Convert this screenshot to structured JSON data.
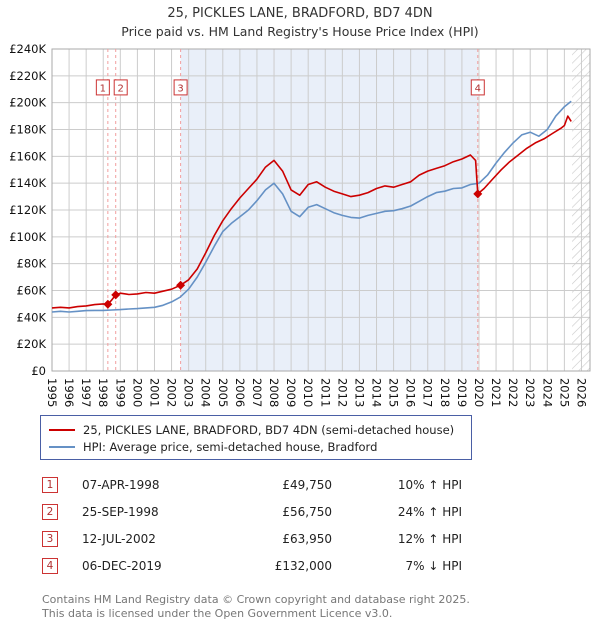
{
  "title": "25, PICKLES LANE, BRADFORD, BD7 4DN",
  "subtitle": "Price paid vs. HM Land Registry's House Price Index (HPI)",
  "legend": {
    "series1": "25, PICKLES LANE, BRADFORD, BD7 4DN (semi-detached house)",
    "series2": "HPI: Average price, semi-detached house, Bradford"
  },
  "transactions": [
    {
      "n": "1",
      "date": "07-APR-1998",
      "price": "£49,750",
      "hpi": "10% ↑ HPI"
    },
    {
      "n": "2",
      "date": "25-SEP-1998",
      "price": "£56,750",
      "hpi": "24% ↑ HPI"
    },
    {
      "n": "3",
      "date": "12-JUL-2002",
      "price": "£63,950",
      "hpi": "12% ↑ HPI"
    },
    {
      "n": "4",
      "date": "06-DEC-2019",
      "price": "£132,000",
      "hpi": "7% ↓ HPI"
    }
  ],
  "footer": {
    "line1": "Contains HM Land Registry data © Crown copyright and database right 2025.",
    "line2": "This data is licensed under the Open Government Licence v3.0."
  },
  "colors": {
    "price_paid": "#cc0000",
    "hpi": "#6591c5",
    "shade": "#e9eff9",
    "sale_line": "#f29e9e",
    "grid": "#cccccc",
    "frame": "#aaaaaa",
    "badge": "#cc3333"
  },
  "chart_data": {
    "type": "line",
    "title": "25, PICKLES LANE, BRADFORD, BD7 4DN",
    "subtitle": "Price paid vs. HM Land Registry's House Price Index (HPI)",
    "x_range": [
      1995,
      2026.5
    ],
    "y_range": [
      0,
      240000
    ],
    "y_tick_step": 20000,
    "y_tick_labels": [
      "£0",
      "£20K",
      "£40K",
      "£60K",
      "£80K",
      "£100K",
      "£120K",
      "£140K",
      "£160K",
      "£180K",
      "£200K",
      "£220K",
      "£240K"
    ],
    "x_ticks": [
      1995,
      1996,
      1997,
      1998,
      1999,
      2000,
      2001,
      2002,
      2003,
      2004,
      2005,
      2006,
      2007,
      2008,
      2009,
      2010,
      2011,
      2012,
      2013,
      2014,
      2015,
      2016,
      2017,
      2018,
      2019,
      2020,
      2021,
      2022,
      2023,
      2024,
      2025,
      2026
    ],
    "shaded_region": [
      2002.53,
      2019.93
    ],
    "hatch_region": [
      2025.45,
      2026.5
    ],
    "marker_label_y": 211000,
    "sales": [
      {
        "n": "1",
        "x": 1998.27,
        "y": 49750,
        "box_dx": -5
      },
      {
        "n": "2",
        "x": 1998.73,
        "y": 56750,
        "box_dx": 5
      },
      {
        "n": "3",
        "x": 2002.53,
        "y": 63950,
        "box_dx": 0
      },
      {
        "n": "4",
        "x": 2019.93,
        "y": 132000,
        "box_dx": 0
      }
    ],
    "series": [
      {
        "name": "25, PICKLES LANE, BRADFORD, BD7 4DN (semi-detached house)",
        "color": "#cc0000",
        "points": [
          [
            1995.0,
            47000
          ],
          [
            1995.5,
            47500
          ],
          [
            1996.0,
            47000
          ],
          [
            1996.5,
            48000
          ],
          [
            1997.0,
            48500
          ],
          [
            1997.5,
            49500
          ],
          [
            1998.0,
            50000
          ],
          [
            1998.27,
            49750
          ],
          [
            1998.5,
            53000
          ],
          [
            1998.73,
            56750
          ],
          [
            1999.0,
            58000
          ],
          [
            1999.5,
            57000
          ],
          [
            2000.0,
            57500
          ],
          [
            2000.5,
            58500
          ],
          [
            2001.0,
            58000
          ],
          [
            2001.5,
            59500
          ],
          [
            2002.0,
            61000
          ],
          [
            2002.53,
            63950
          ],
          [
            2003.0,
            68000
          ],
          [
            2003.5,
            76000
          ],
          [
            2004.0,
            88000
          ],
          [
            2004.5,
            101000
          ],
          [
            2005.0,
            112000
          ],
          [
            2005.5,
            121000
          ],
          [
            2006.0,
            129000
          ],
          [
            2006.5,
            136000
          ],
          [
            2007.0,
            143000
          ],
          [
            2007.5,
            152000
          ],
          [
            2008.0,
            157000
          ],
          [
            2008.5,
            149000
          ],
          [
            2009.0,
            135000
          ],
          [
            2009.5,
            131000
          ],
          [
            2010.0,
            139000
          ],
          [
            2010.5,
            141000
          ],
          [
            2011.0,
            137000
          ],
          [
            2011.5,
            134000
          ],
          [
            2012.0,
            132000
          ],
          [
            2012.5,
            130000
          ],
          [
            2013.0,
            131000
          ],
          [
            2013.5,
            133000
          ],
          [
            2014.0,
            136000
          ],
          [
            2014.5,
            138000
          ],
          [
            2015.0,
            137000
          ],
          [
            2015.5,
            139000
          ],
          [
            2016.0,
            141000
          ],
          [
            2016.5,
            146000
          ],
          [
            2017.0,
            149000
          ],
          [
            2017.5,
            151000
          ],
          [
            2018.0,
            153000
          ],
          [
            2018.5,
            156000
          ],
          [
            2019.0,
            158000
          ],
          [
            2019.5,
            161000
          ],
          [
            2019.8,
            157000
          ],
          [
            2019.93,
            132000
          ],
          [
            2020.3,
            136000
          ],
          [
            2020.8,
            143000
          ],
          [
            2021.3,
            150000
          ],
          [
            2021.8,
            156000
          ],
          [
            2022.3,
            161000
          ],
          [
            2022.8,
            166000
          ],
          [
            2023.3,
            170000
          ],
          [
            2023.8,
            173000
          ],
          [
            2024.3,
            177000
          ],
          [
            2024.8,
            181000
          ],
          [
            2025.0,
            183000
          ],
          [
            2025.2,
            190000
          ],
          [
            2025.4,
            186000
          ]
        ]
      },
      {
        "name": "HPI: Average price, semi-detached house, Bradford",
        "color": "#6591c5",
        "points": [
          [
            1995.0,
            44000
          ],
          [
            1995.5,
            44500
          ],
          [
            1996.0,
            44000
          ],
          [
            1996.5,
            44500
          ],
          [
            1997.0,
            45000
          ],
          [
            1997.5,
            45200
          ],
          [
            1998.0,
            45200
          ],
          [
            1998.5,
            45500
          ],
          [
            1999.0,
            45800
          ],
          [
            1999.5,
            46200
          ],
          [
            2000.0,
            46500
          ],
          [
            2000.5,
            47000
          ],
          [
            2001.0,
            47500
          ],
          [
            2001.5,
            49000
          ],
          [
            2002.0,
            51500
          ],
          [
            2002.5,
            55000
          ],
          [
            2003.0,
            61000
          ],
          [
            2003.5,
            70000
          ],
          [
            2004.0,
            81000
          ],
          [
            2004.5,
            93000
          ],
          [
            2005.0,
            104000
          ],
          [
            2005.5,
            110000
          ],
          [
            2006.0,
            115000
          ],
          [
            2006.5,
            120000
          ],
          [
            2007.0,
            127000
          ],
          [
            2007.5,
            135000
          ],
          [
            2008.0,
            140000
          ],
          [
            2008.5,
            132000
          ],
          [
            2009.0,
            119000
          ],
          [
            2009.5,
            115000
          ],
          [
            2010.0,
            122000
          ],
          [
            2010.5,
            124000
          ],
          [
            2011.0,
            121000
          ],
          [
            2011.5,
            118000
          ],
          [
            2012.0,
            116000
          ],
          [
            2012.5,
            114500
          ],
          [
            2013.0,
            114000
          ],
          [
            2013.5,
            116000
          ],
          [
            2014.0,
            117500
          ],
          [
            2014.5,
            119000
          ],
          [
            2015.0,
            119500
          ],
          [
            2015.5,
            121000
          ],
          [
            2016.0,
            123000
          ],
          [
            2016.5,
            126500
          ],
          [
            2017.0,
            130000
          ],
          [
            2017.5,
            133000
          ],
          [
            2018.0,
            134000
          ],
          [
            2018.5,
            136000
          ],
          [
            2019.0,
            136500
          ],
          [
            2019.5,
            139000
          ],
          [
            2020.0,
            140000
          ],
          [
            2020.5,
            146000
          ],
          [
            2021.0,
            155000
          ],
          [
            2021.5,
            163000
          ],
          [
            2022.0,
            170000
          ],
          [
            2022.5,
            176000
          ],
          [
            2023.0,
            178000
          ],
          [
            2023.5,
            175000
          ],
          [
            2024.0,
            180000
          ],
          [
            2024.5,
            190000
          ],
          [
            2025.0,
            197000
          ],
          [
            2025.4,
            201000
          ]
        ]
      }
    ]
  }
}
